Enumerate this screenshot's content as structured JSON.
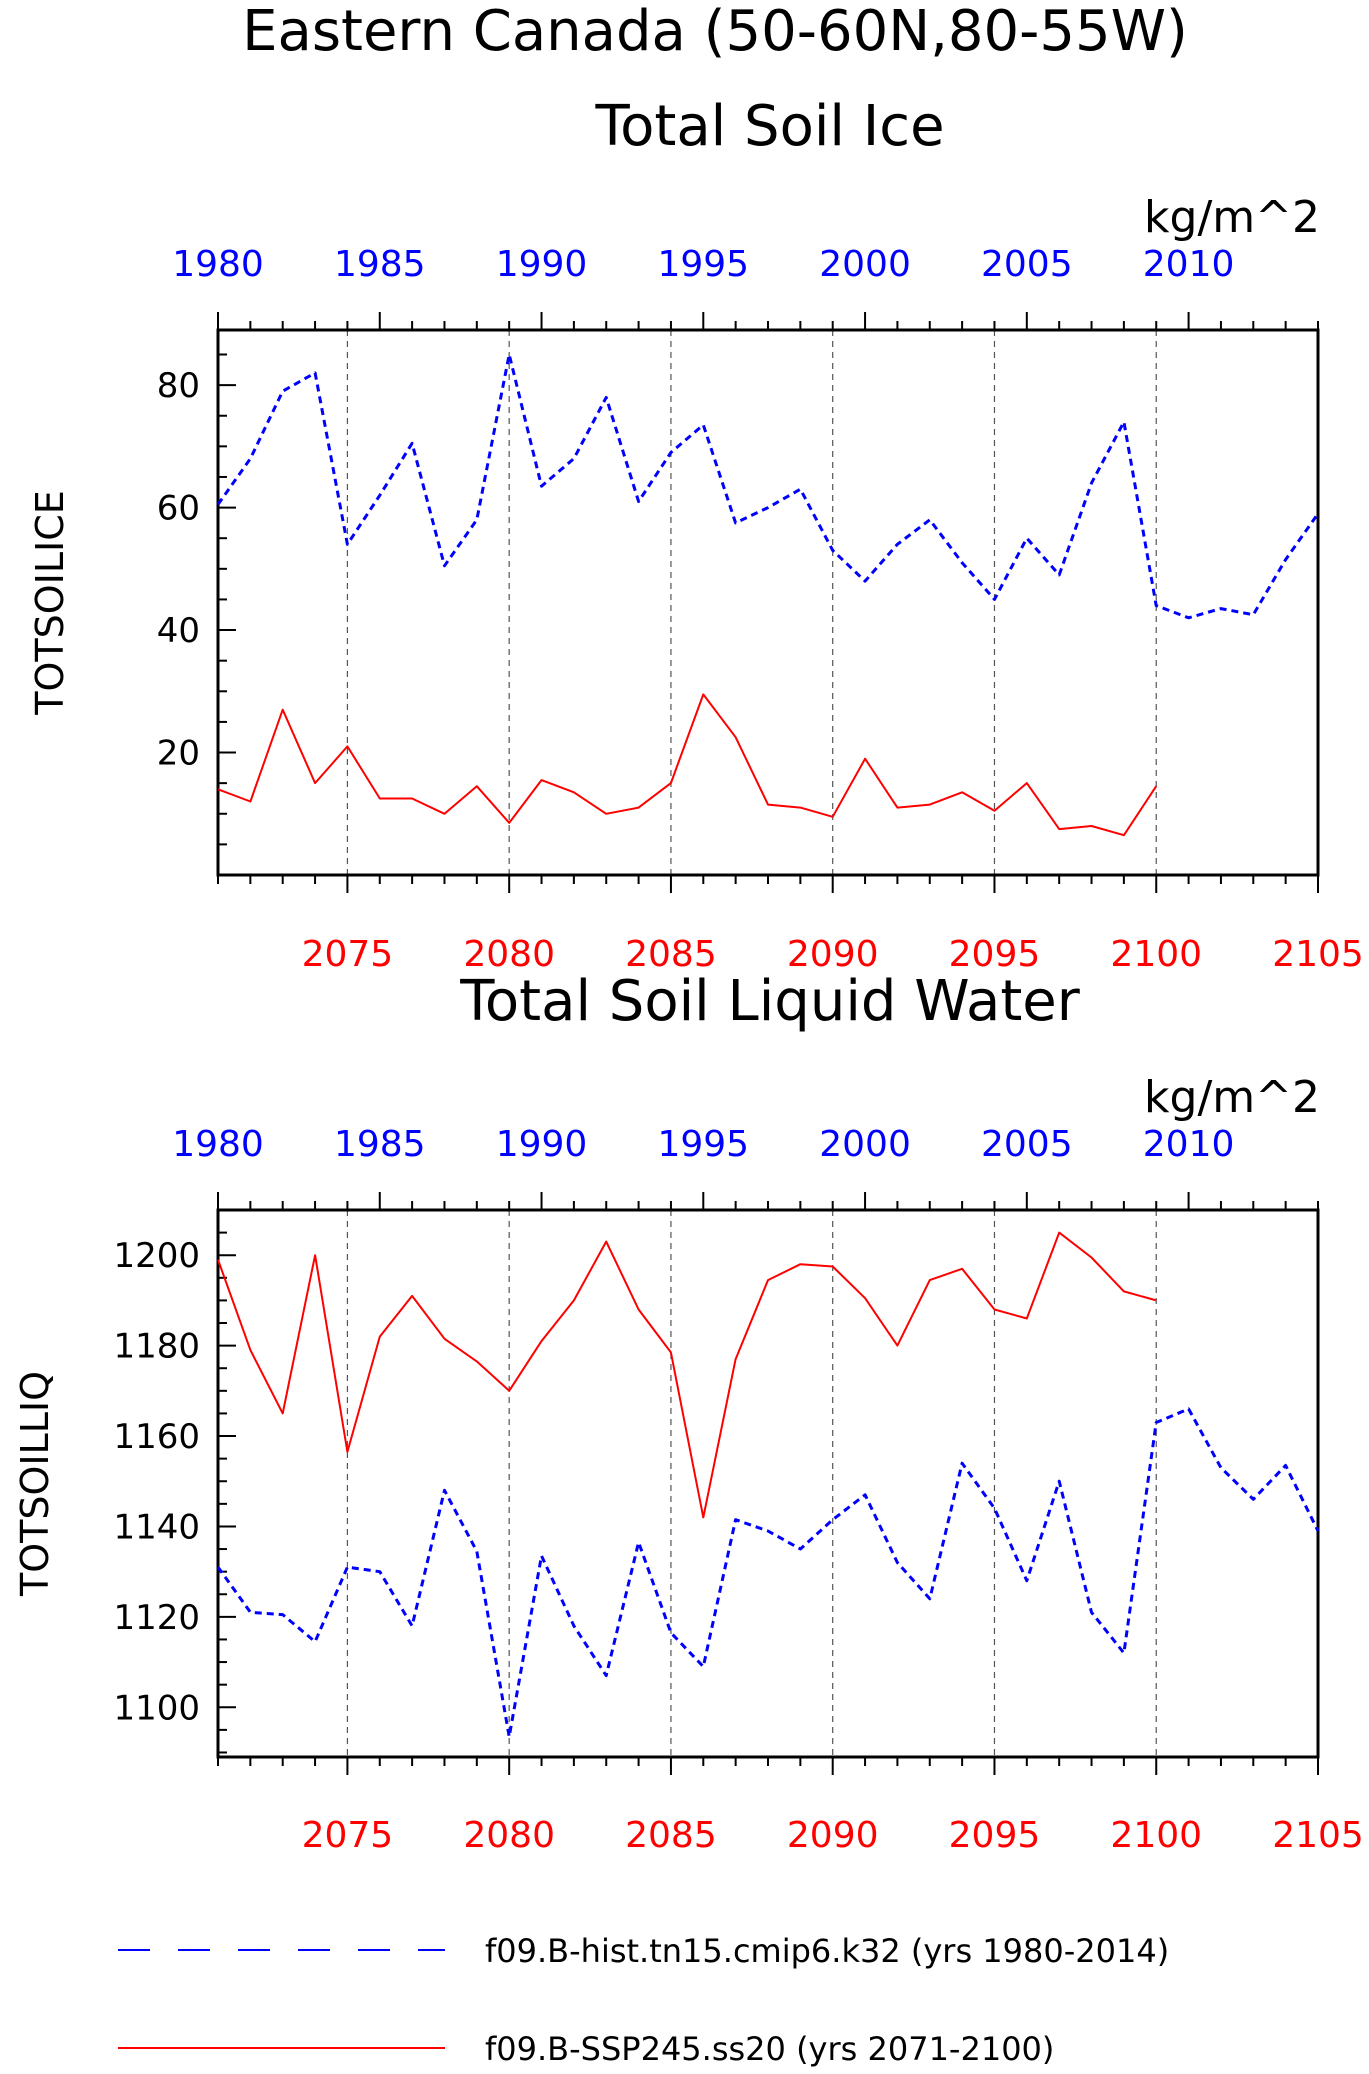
{
  "header": {
    "title_line1": "Eastern Canada (50-60N,80-55W)",
    "title_line2": "Total Soil Ice"
  },
  "colors": {
    "hist": "#0000ff",
    "ssp": "#ff0000",
    "axis": "#000000",
    "grid": "#555555"
  },
  "legend": {
    "hist_label": "f09.B-hist.tn15.cmip6.k32 (yrs 1980-2014)",
    "ssp_label": "f09.B-SSP245.ss20 (yrs 2071-2100)"
  },
  "chart_data": [
    {
      "type": "line",
      "title": "",
      "ylabel": "TOTSOILICE",
      "units": "kg/m^2",
      "ylim": [
        0,
        89
      ],
      "yticks": [
        20,
        40,
        60,
        80
      ],
      "x_top": {
        "label_color": "blue",
        "range": [
          1980,
          2014
        ],
        "ticks": [
          1980,
          1985,
          1990,
          1995,
          2000,
          2005,
          2010
        ]
      },
      "x_bottom": {
        "label_color": "red",
        "range": [
          2071,
          2105
        ],
        "ticks": [
          2075,
          2080,
          2085,
          2090,
          2095,
          2100,
          2105
        ]
      },
      "grid": "dashed vertical at bottom-axis major ticks",
      "series": [
        {
          "name": "f09.B-hist.tn15.cmip6.k32 (yrs 1980-2014)",
          "axis": "top",
          "style": "dashed",
          "color": "#0000ff",
          "x": [
            1980,
            1981,
            1982,
            1983,
            1984,
            1985,
            1986,
            1987,
            1988,
            1989,
            1990,
            1991,
            1992,
            1993,
            1994,
            1995,
            1996,
            1997,
            1998,
            1999,
            2000,
            2001,
            2002,
            2003,
            2004,
            2005,
            2006,
            2007,
            2008,
            2009,
            2010,
            2011,
            2012,
            2013,
            2014
          ],
          "values": [
            60.5,
            68,
            79,
            82,
            54,
            62,
            70.5,
            50.5,
            58,
            85,
            63.5,
            68,
            78,
            61,
            69,
            73.5,
            57.5,
            60,
            63,
            53,
            48,
            54,
            58,
            51,
            45,
            55,
            49,
            64,
            74,
            44,
            42,
            43.5,
            42.5,
            51.5,
            59
          ]
        },
        {
          "name": "f09.B-SSP245.ss20 (yrs 2071-2100)",
          "axis": "bottom",
          "style": "solid",
          "color": "#ff0000",
          "x": [
            2071,
            2072,
            2073,
            2074,
            2075,
            2076,
            2077,
            2078,
            2079,
            2080,
            2081,
            2082,
            2083,
            2084,
            2085,
            2086,
            2087,
            2088,
            2089,
            2090,
            2091,
            2092,
            2093,
            2094,
            2095,
            2096,
            2097,
            2098,
            2099,
            2100
          ],
          "values": [
            14,
            12,
            27,
            15,
            21,
            12.5,
            12.5,
            10,
            14.5,
            8.5,
            15.5,
            13.5,
            10,
            11,
            15,
            29.5,
            22.5,
            11.5,
            11,
            9.5,
            19,
            11,
            11.5,
            13.5,
            10.5,
            15,
            7.5,
            8,
            6.5,
            14.5
          ]
        }
      ]
    },
    {
      "type": "line",
      "title": "Total Soil Liquid Water",
      "ylabel": "TOTSOILLIQ",
      "units": "kg/m^2",
      "ylim": [
        1089,
        1210
      ],
      "yticks": [
        1100,
        1120,
        1140,
        1160,
        1180,
        1200
      ],
      "x_top": {
        "label_color": "blue",
        "range": [
          1980,
          2014
        ],
        "ticks": [
          1980,
          1985,
          1990,
          1995,
          2000,
          2005,
          2010
        ]
      },
      "x_bottom": {
        "label_color": "red",
        "range": [
          2071,
          2105
        ],
        "ticks": [
          2075,
          2080,
          2085,
          2090,
          2095,
          2100,
          2105
        ]
      },
      "grid": "dashed vertical at bottom-axis major ticks",
      "series": [
        {
          "name": "f09.B-hist.tn15.cmip6.k32 (yrs 1980-2014)",
          "axis": "top",
          "style": "dashed",
          "color": "#0000ff",
          "x": [
            1980,
            1981,
            1982,
            1983,
            1984,
            1985,
            1986,
            1987,
            1988,
            1989,
            1990,
            1991,
            1992,
            1993,
            1994,
            1995,
            1996,
            1997,
            1998,
            1999,
            2000,
            2001,
            2002,
            2003,
            2004,
            2005,
            2006,
            2007,
            2008,
            2009,
            2010,
            2011,
            2012,
            2013,
            2014
          ],
          "values": [
            1131,
            1121,
            1120.5,
            1114.5,
            1131,
            1130,
            1118,
            1148,
            1134.5,
            1093.5,
            1133.5,
            1118,
            1107,
            1136.5,
            1116.5,
            1109,
            1141.5,
            1139,
            1135,
            1141.5,
            1147,
            1132,
            1124,
            1154,
            1144,
            1128,
            1150,
            1121,
            1112,
            1163,
            1166,
            1153,
            1146,
            1153.5,
            1139
          ]
        },
        {
          "name": "f09.B-SSP245.ss20 (yrs 2071-2100)",
          "axis": "bottom",
          "style": "solid",
          "color": "#ff0000",
          "x": [
            2071,
            2072,
            2073,
            2074,
            2075,
            2076,
            2077,
            2078,
            2079,
            2080,
            2081,
            2082,
            2083,
            2084,
            2085,
            2086,
            2087,
            2088,
            2089,
            2090,
            2091,
            2092,
            2093,
            2094,
            2095,
            2096,
            2097,
            2098,
            2099,
            2100
          ],
          "values": [
            1199,
            1179,
            1165,
            1200,
            1156.5,
            1182,
            1191,
            1181.5,
            1176.5,
            1170,
            1181,
            1190,
            1203,
            1188,
            1178.5,
            1142,
            1177,
            1194.5,
            1198,
            1197.5,
            1190.5,
            1180,
            1194.5,
            1197,
            1188,
            1186,
            1205,
            1199.5,
            1192,
            1190
          ]
        }
      ]
    }
  ]
}
